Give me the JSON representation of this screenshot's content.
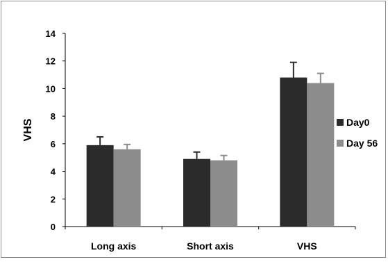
{
  "chart_data": {
    "type": "bar",
    "title": "",
    "xlabel": "",
    "ylabel": "VHS",
    "categories": [
      "Long axis",
      "Short axis",
      "VHS"
    ],
    "series": [
      {
        "name": "Day0",
        "values": [
          5.9,
          4.9,
          10.8
        ],
        "errors": [
          0.6,
          0.5,
          1.1
        ],
        "color": "#2b2b2b"
      },
      {
        "name": "Day 56",
        "values": [
          5.6,
          4.8,
          10.4
        ],
        "errors": [
          0.35,
          0.35,
          0.7
        ],
        "color": "#8c8c8c"
      }
    ],
    "ylim": [
      0,
      14
    ],
    "yticks": [
      0,
      2,
      4,
      6,
      8,
      10,
      12,
      14
    ],
    "grid": false,
    "legend_position": "right"
  }
}
